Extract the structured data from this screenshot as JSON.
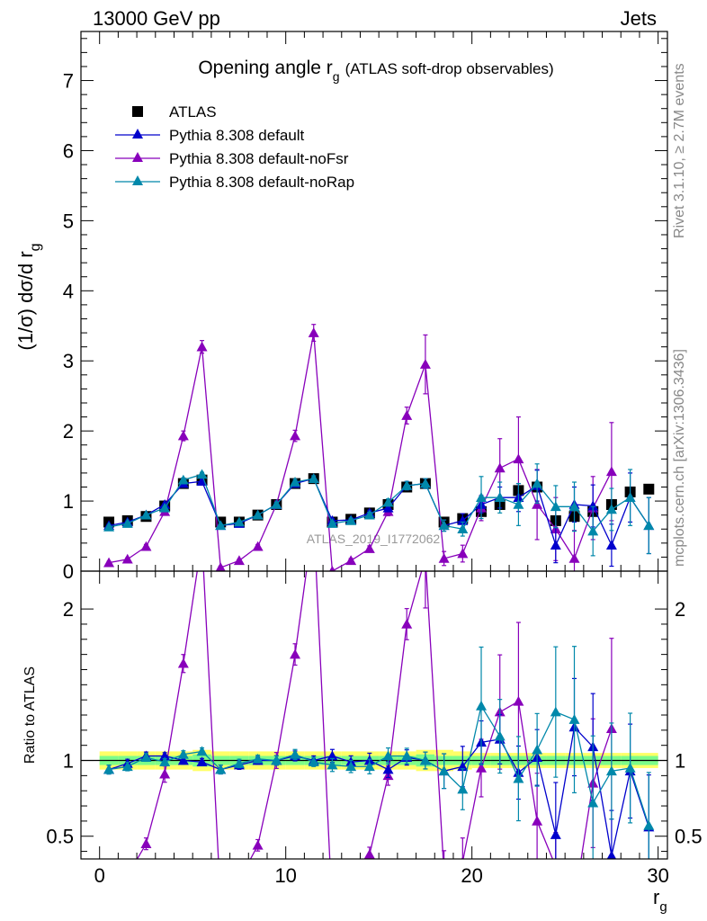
{
  "header": {
    "left": "13000 GeV pp",
    "right": "Jets",
    "side_rivet": "Rivet 3.1.10, ≥ 2.7M events",
    "side_mcplots": "mcplots.cern.ch [arXiv:1306.3436]"
  },
  "chart_data": {
    "type": "line",
    "title_main": "Opening angle r",
    "title_sub": "g",
    "title_extra": "(ATLAS soft-drop observables)",
    "watermark": "ATLAS_2019_I1772062",
    "ylabel_top": "(1/σ) dσ/d r",
    "ylabel_top_sub": "g",
    "ylabel_bottom": "Ratio to ATLAS",
    "xlabel": "r",
    "xlabel_sub": "g",
    "xlim": [
      -1,
      30.5
    ],
    "ylim_top": [
      0,
      7.7
    ],
    "ylim_bottom": [
      0.35,
      2.25
    ],
    "xticks": [
      "0",
      "10",
      "20",
      "30"
    ],
    "yticks_top": [
      "0",
      "1",
      "2",
      "3",
      "4",
      "5",
      "6",
      "7"
    ],
    "yticks_bottom": [
      "0.5",
      "1",
      "2"
    ],
    "x": [
      0.5,
      1.5,
      2.5,
      3.5,
      4.5,
      5.5,
      6.5,
      7.5,
      8.5,
      9.5,
      10.5,
      11.5,
      12.5,
      13.5,
      14.5,
      15.5,
      16.5,
      17.5,
      18.5,
      19.5,
      20.5,
      21.5,
      22.5,
      23.5,
      24.5,
      25.5,
      26.5,
      27.5,
      28.5,
      29.5
    ],
    "data": {
      "name": "ATLAS",
      "color": "#000000",
      "values": [
        0.7,
        0.72,
        0.78,
        0.93,
        1.25,
        1.3,
        0.7,
        0.7,
        0.8,
        0.95,
        1.25,
        1.32,
        0.7,
        0.74,
        0.83,
        0.95,
        1.2,
        1.25,
        0.7,
        0.75,
        0.85,
        0.95,
        1.15,
        1.2,
        0.72,
        0.78,
        0.85,
        0.95,
        1.13,
        1.17
      ]
    },
    "series": [
      {
        "name": "Pythia 8.308 default",
        "color": "#0000cc",
        "values": [
          0.65,
          0.7,
          0.8,
          0.95,
          1.25,
          1.28,
          0.65,
          0.68,
          0.8,
          0.95,
          1.25,
          1.32,
          0.72,
          0.73,
          0.83,
          0.9,
          1.22,
          1.25,
          0.65,
          0.72,
          0.95,
          1.05,
          1.05,
          1.22,
          0.37,
          0.95,
          0.93,
          0.37,
          1.05,
          0.65
        ],
        "errors": [
          0.02,
          0.02,
          0.02,
          0.02,
          0.03,
          0.03,
          0.02,
          0.02,
          0.02,
          0.03,
          0.04,
          0.04,
          0.03,
          0.03,
          0.04,
          0.05,
          0.06,
          0.07,
          0.08,
          0.1,
          0.12,
          0.15,
          0.2,
          0.22,
          0.25,
          0.25,
          0.3,
          0.3,
          0.35,
          0.4
        ]
      },
      {
        "name": "Pythia 8.308 default-noFsr",
        "color": "#8800bb",
        "values": [
          0.12,
          0.17,
          0.35,
          0.85,
          1.93,
          3.2,
          0.05,
          0.15,
          0.35,
          0.95,
          1.93,
          3.4,
          0.0,
          0.15,
          0.32,
          0.85,
          2.22,
          2.95,
          0.18,
          0.25,
          0.9,
          1.47,
          1.6,
          0.95,
          0.6,
          0.18,
          0.9,
          1.42,
          null,
          null
        ],
        "errors": [
          0.02,
          0.02,
          0.03,
          0.05,
          0.07,
          0.09,
          0.02,
          0.02,
          0.03,
          0.05,
          0.08,
          0.12,
          0.02,
          0.03,
          0.04,
          0.06,
          0.12,
          0.42,
          0.1,
          0.12,
          0.18,
          0.42,
          0.6,
          0.5,
          0.45,
          0.4,
          0.45,
          0.7,
          0,
          0
        ],
        "ratio": [
          0.17,
          0.24,
          0.45,
          0.91,
          1.64,
          2.46,
          0.07,
          0.21,
          0.44,
          1.0,
          1.7,
          2.6,
          0.0,
          0.2,
          0.38,
          0.9,
          1.9,
          2.34,
          0.26,
          0.33,
          0.95,
          1.32,
          1.39,
          0.6,
          0.3,
          0.06,
          0.85,
          1.21,
          null,
          null
        ]
      },
      {
        "name": "Pythia 8.308 default-noRap",
        "color": "#0088aa",
        "values": [
          0.63,
          0.68,
          0.8,
          0.9,
          1.3,
          1.38,
          0.65,
          0.7,
          0.8,
          0.95,
          1.27,
          1.32,
          0.68,
          0.72,
          0.8,
          0.98,
          1.22,
          1.25,
          0.65,
          0.6,
          1.05,
          1.05,
          0.95,
          1.25,
          0.92,
          0.92,
          0.57,
          0.88,
          1.05,
          0.65
        ],
        "errors": [
          0.02,
          0.02,
          0.02,
          0.02,
          0.03,
          0.03,
          0.02,
          0.02,
          0.02,
          0.03,
          0.04,
          0.04,
          0.03,
          0.03,
          0.04,
          0.05,
          0.06,
          0.07,
          0.08,
          0.1,
          0.3,
          0.22,
          0.3,
          0.28,
          0.3,
          0.35,
          0.35,
          0.3,
          0.4,
          0.4
        ]
      }
    ],
    "ratio_default": [
      0.94,
      0.98,
      1.03,
      1.03,
      1.0,
      0.99,
      0.94,
      0.97,
      1.0,
      1.0,
      1.03,
      1.0,
      1.03,
      0.99,
      1.0,
      0.94,
      1.02,
      1.0,
      0.93,
      0.96,
      1.12,
      1.14,
      0.92,
      1.02,
      0.51,
      1.22,
      1.09,
      0.37,
      0.93,
      0.56
    ],
    "ratio_norap": [
      0.94,
      0.96,
      1.02,
      0.99,
      1.04,
      1.06,
      0.94,
      0.98,
      1.01,
      1.0,
      1.04,
      0.99,
      0.97,
      0.96,
      0.96,
      1.03,
      1.03,
      1.0,
      0.93,
      0.81,
      1.36,
      1.16,
      0.88,
      1.07,
      1.32,
      1.27,
      0.72,
      0.93,
      0.95,
      0.57
    ],
    "band_inner": [
      0.03,
      0.03,
      0.03,
      0.03,
      0.03,
      0.04,
      0.03,
      0.03,
      0.03,
      0.03,
      0.03,
      0.03,
      0.03,
      0.03,
      0.03,
      0.03,
      0.03,
      0.04,
      0.03,
      0.03,
      0.03,
      0.03,
      0.03,
      0.03,
      0.03,
      0.03,
      0.03,
      0.03,
      0.03,
      0.03
    ],
    "band_outer": [
      0.06,
      0.06,
      0.06,
      0.06,
      0.06,
      0.07,
      0.06,
      0.06,
      0.06,
      0.06,
      0.06,
      0.06,
      0.06,
      0.06,
      0.06,
      0.06,
      0.06,
      0.07,
      0.07,
      0.06,
      0.05,
      0.05,
      0.05,
      0.05,
      0.05,
      0.05,
      0.05,
      0.05,
      0.05,
      0.05
    ],
    "band_colors": {
      "inner": "#7cfc8a",
      "outer": "#ffff66"
    }
  }
}
